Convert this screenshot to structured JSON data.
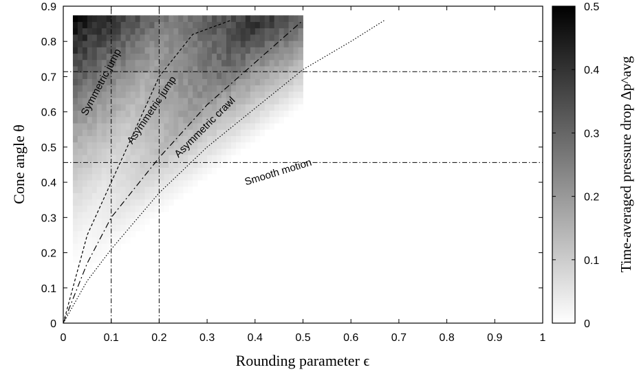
{
  "chart_data": {
    "type": "heatmap",
    "title": "",
    "xlabel": "Rounding parameter ϵ",
    "ylabel": "Cone angle θ",
    "xlim": [
      0,
      1
    ],
    "ylim": [
      0,
      0.9
    ],
    "xticks": [
      "0",
      "0.1",
      "0.2",
      "0.3",
      "0.4",
      "0.5",
      "0.6",
      "0.7",
      "0.8",
      "0.9",
      "1"
    ],
    "yticks": [
      "0",
      "0.1",
      "0.2",
      "0.3",
      "0.4",
      "0.5",
      "0.6",
      "0.7",
      "0.8",
      "0.9"
    ],
    "colorbar": {
      "label": "Time-averaged pressure drop Δp^avg",
      "min": 0,
      "max": 0.5,
      "ticks": [
        "0",
        "0.1",
        "0.2",
        "0.3",
        "0.4",
        "0.5"
      ],
      "colormap": "white-to-black"
    },
    "heatmap": {
      "eps_range": [
        0.02,
        0.5
      ],
      "theta_range": [
        0.1,
        0.86
      ],
      "peak_value": 0.5,
      "peak_location": [
        0.02,
        0.86
      ]
    },
    "boundaries": [
      {
        "style": "dashed",
        "points": [
          [
            0,
            0
          ],
          [
            0.02,
            0.1
          ],
          [
            0.05,
            0.25
          ],
          [
            0.1,
            0.4
          ],
          [
            0.15,
            0.55
          ],
          [
            0.2,
            0.7
          ],
          [
            0.27,
            0.82
          ],
          [
            0.35,
            0.86
          ]
        ]
      },
      {
        "style": "dash-dot",
        "points": [
          [
            0,
            0
          ],
          [
            0.05,
            0.17
          ],
          [
            0.1,
            0.3
          ],
          [
            0.2,
            0.47
          ],
          [
            0.3,
            0.62
          ],
          [
            0.4,
            0.74
          ],
          [
            0.5,
            0.86
          ]
        ]
      },
      {
        "style": "dotted",
        "points": [
          [
            0,
            0
          ],
          [
            0.05,
            0.12
          ],
          [
            0.1,
            0.21
          ],
          [
            0.2,
            0.37
          ],
          [
            0.3,
            0.5
          ],
          [
            0.4,
            0.61
          ],
          [
            0.5,
            0.72
          ],
          [
            0.6,
            0.8
          ],
          [
            0.67,
            0.86
          ]
        ]
      }
    ],
    "reference_lines": {
      "vertical": [
        0.1,
        0.2
      ],
      "horizontal": [
        0.456,
        0.714
      ]
    },
    "region_labels": [
      {
        "text": "Symmetric jump",
        "x": 0.085,
        "y": 0.68,
        "angle": -62
      },
      {
        "text": "Asymmetric jump",
        "x": 0.19,
        "y": 0.6,
        "angle": -56
      },
      {
        "text": "Asymmetric crawl",
        "x": 0.3,
        "y": 0.55,
        "angle": -45
      },
      {
        "text": "Smooth motion",
        "x": 0.45,
        "y": 0.42,
        "angle": -17
      }
    ],
    "grid": false,
    "legend": "none"
  }
}
